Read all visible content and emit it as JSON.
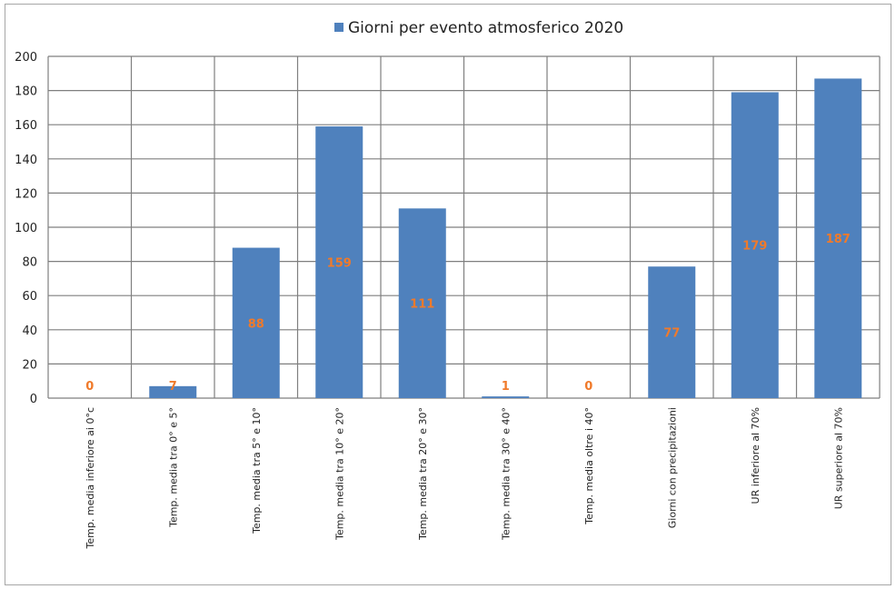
{
  "chart_data": {
    "type": "bar",
    "categories": [
      "Temp. media inferiore ai 0°c",
      "Temp. media tra 0° e 5°",
      "Temp. media tra 5° e 10°",
      "Temp. media tra 10° e 20°",
      "Temp. media tra 20° e 30°",
      "Temp. media tra 30° e 40°",
      "Temp. media oltre i 40°",
      "Giorni con precipitazioni",
      "UR inferiore al 70%",
      "UR superiore al 70%"
    ],
    "series": [
      {
        "name": "Giorni per evento atmosferico 2020",
        "values": [
          0,
          7,
          88,
          159,
          111,
          1,
          0,
          77,
          179,
          187
        ]
      }
    ],
    "ylim": [
      0,
      200
    ],
    "yticks": [
      "0",
      "20",
      "40",
      "60",
      "80",
      "100",
      "120",
      "140",
      "160",
      "180",
      "200"
    ],
    "grid": true,
    "legend_position": "top",
    "bar_color": "#4f81bd",
    "label_color": "#f07a2a",
    "grid_color": "#7f7f7f"
  }
}
